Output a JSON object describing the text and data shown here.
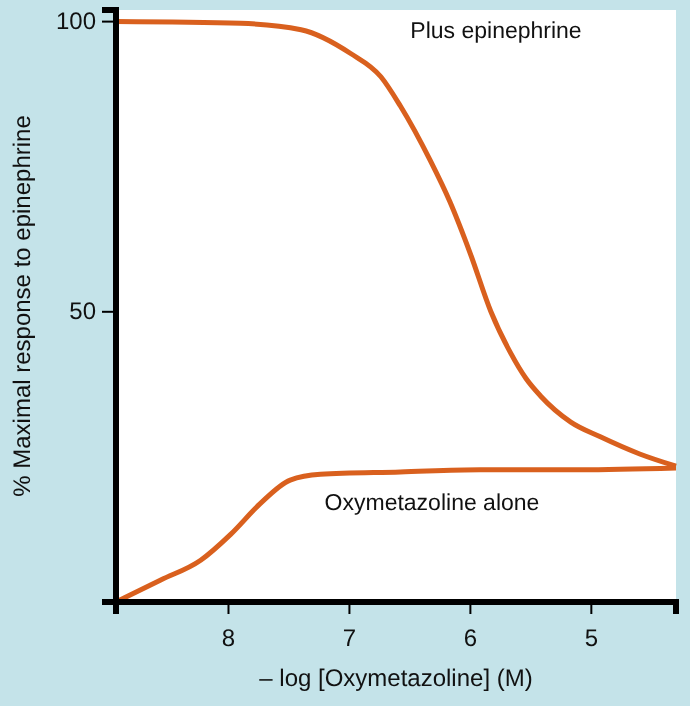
{
  "chart_data": {
    "type": "line",
    "xlabel": "– log [Oxymetazoline] (M)",
    "ylabel": "% Maximal response to epinephrine",
    "xlim": [
      8.93,
      4.3
    ],
    "ylim": [
      0,
      102
    ],
    "xticks": [
      8,
      7,
      6,
      5
    ],
    "yticks": [
      50,
      100
    ],
    "grid": false,
    "legend": false,
    "marker": "none",
    "line_style": "solid",
    "series": [
      {
        "name": "Plus epinephrine",
        "color": "#d9601e",
        "x": [
          8.93,
          7.9,
          7.4,
          6.99,
          6.74,
          6.58,
          6.33,
          6.17,
          6.0,
          5.83,
          5.67,
          5.54,
          5.42,
          5.17,
          4.93,
          4.6,
          4.3
        ],
        "values": [
          100,
          99.7,
          98.6,
          94.5,
          90.5,
          85.5,
          76,
          69,
          60,
          50,
          43,
          38.5,
          35.5,
          31,
          28.5,
          25.5,
          23.4
        ]
      },
      {
        "name": "Oxymetazoline alone",
        "color": "#d9601e",
        "x": [
          8.93,
          8.56,
          8.23,
          7.98,
          7.74,
          7.49,
          7.24,
          6.58,
          5.92,
          5.09,
          4.3
        ],
        "values": [
          0,
          3.8,
          7.2,
          11.7,
          16.9,
          21,
          22,
          22.4,
          22.8,
          22.8,
          23.1
        ]
      }
    ]
  }
}
